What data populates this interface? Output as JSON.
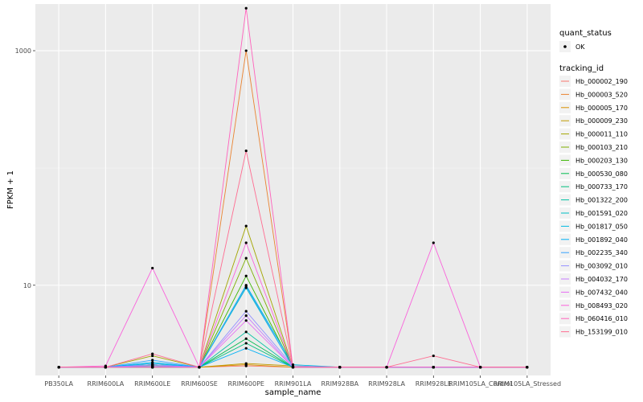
{
  "chart_data": {
    "type": "line",
    "xlabel": "sample_name",
    "ylabel": "FPKM + 1",
    "y_scale": "log10",
    "ylim": [
      1.7,
      2500
    ],
    "y_ticks": [
      10,
      1000
    ],
    "categories": [
      "PB350LA",
      "RRIM600LA",
      "RRIM600LE",
      "RRIM600SE",
      "RRIM600PE",
      "RRIM901LA",
      "RRIM928BA",
      "RRIM928LA",
      "RRIM928LE",
      "RRIM105LA_Control",
      "RRIM105LA_Stressed"
    ],
    "grid": true,
    "legend_position": "right",
    "legend": {
      "shape_title": "quant_status",
      "shape_entries": [
        "OK"
      ],
      "color_title": "tracking_id"
    },
    "series": [
      {
        "name": "Hb_000002_190",
        "color": "#F8766D",
        "values": [
          2,
          2,
          2,
          2,
          2.05,
          2,
          2,
          2,
          2,
          2,
          2
        ]
      },
      {
        "name": "Hb_000003_520",
        "color": "#EA8331",
        "values": [
          2,
          2,
          2,
          2,
          1000,
          2,
          2,
          2,
          2,
          2,
          2
        ]
      },
      {
        "name": "Hb_000005_170",
        "color": "#D89000",
        "values": [
          2,
          2,
          2,
          2,
          2.1,
          2,
          2,
          2,
          2,
          2,
          2
        ]
      },
      {
        "name": "Hb_000009_230",
        "color": "#C09B00",
        "values": [
          2,
          2,
          2,
          2,
          2.15,
          2.05,
          2,
          2,
          2,
          2,
          2
        ]
      },
      {
        "name": "Hb_000011_110",
        "color": "#A3A500",
        "values": [
          2,
          2,
          2.5,
          2,
          32,
          2,
          2,
          2,
          2,
          2,
          2
        ]
      },
      {
        "name": "Hb_000103_210",
        "color": "#7CAE00",
        "values": [
          2,
          2,
          2.1,
          2,
          17,
          2,
          2,
          2,
          2,
          2,
          2
        ]
      },
      {
        "name": "Hb_000203_130",
        "color": "#39B600",
        "values": [
          2,
          2,
          2.05,
          2,
          12,
          2,
          2,
          2,
          2,
          2,
          2
        ]
      },
      {
        "name": "Hb_000530_080",
        "color": "#00BB4E",
        "values": [
          2,
          2,
          2,
          2,
          3.5,
          2,
          2,
          2,
          2,
          2,
          2
        ]
      },
      {
        "name": "Hb_000733_170",
        "color": "#00BF7D",
        "values": [
          2,
          2,
          2.05,
          2,
          3.2,
          2,
          2,
          2,
          2,
          2,
          2
        ]
      },
      {
        "name": "Hb_001322_200",
        "color": "#00C1A3",
        "values": [
          2,
          2,
          2,
          2,
          4,
          2,
          2,
          2,
          2,
          2,
          2
        ]
      },
      {
        "name": "Hb_001591_020",
        "color": "#00BFC4",
        "values": [
          2,
          2,
          2.1,
          2,
          9.5,
          2,
          2,
          2,
          2,
          2,
          2
        ]
      },
      {
        "name": "Hb_001817_050",
        "color": "#00BAE0",
        "values": [
          2,
          2,
          2.15,
          2,
          10,
          2.1,
          2,
          2,
          2,
          2,
          2
        ]
      },
      {
        "name": "Hb_001892_040",
        "color": "#00B0F6",
        "values": [
          2,
          2,
          2.2,
          2,
          2.9,
          2,
          2,
          2,
          2,
          2,
          2
        ]
      },
      {
        "name": "Hb_002235_340",
        "color": "#35A2FF",
        "values": [
          2,
          2,
          2.3,
          2,
          9.8,
          2,
          2,
          2,
          2,
          2,
          2
        ]
      },
      {
        "name": "Hb_003092_010",
        "color": "#9590FF",
        "values": [
          2,
          2,
          2.1,
          2,
          6,
          2.05,
          2,
          2,
          2,
          2,
          2
        ]
      },
      {
        "name": "Hb_004032_170",
        "color": "#C77CFF",
        "values": [
          2,
          2,
          2.05,
          2,
          5.5,
          2,
          2,
          2,
          2,
          2,
          2
        ]
      },
      {
        "name": "Hb_007432_040",
        "color": "#E76BF3",
        "values": [
          2,
          2,
          2,
          2,
          5,
          2,
          2,
          2,
          2,
          2,
          2
        ]
      },
      {
        "name": "Hb_008493_020",
        "color": "#FA62DB",
        "values": [
          2,
          2.05,
          14,
          2,
          23,
          2,
          2,
          2,
          23,
          2,
          2
        ]
      },
      {
        "name": "Hb_060416_010",
        "color": "#FF62BC",
        "values": [
          2,
          2,
          2,
          2,
          2300,
          2,
          2,
          2,
          2,
          2,
          2
        ]
      },
      {
        "name": "Hb_153199_010",
        "color": "#FF6C91",
        "values": [
          2,
          2,
          2.6,
          2,
          140,
          2,
          2,
          2,
          2.5,
          2,
          2
        ]
      }
    ]
  }
}
